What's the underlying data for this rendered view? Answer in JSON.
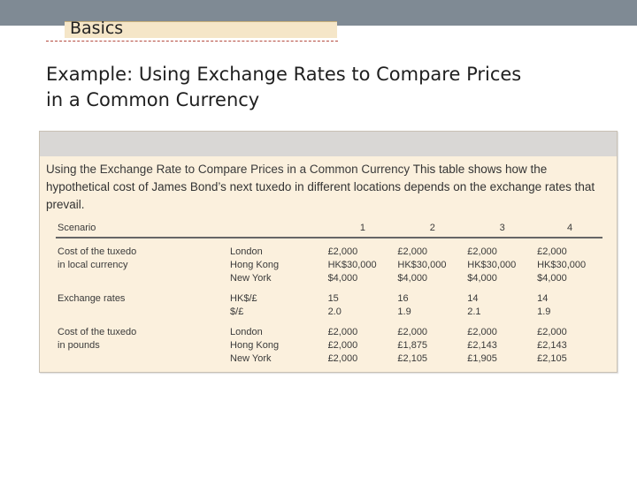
{
  "header": {
    "section_label": "Basics"
  },
  "title": {
    "line1": "Example: Using Exchange Rates to Compare Prices",
    "line2": "in a Common Currency"
  },
  "panel": {
    "caption_title": "Using the Exchange Rate to Compare Prices in a Common Currency",
    "caption_body": " This table shows how the hypothetical cost of James Bond’s next tuxedo in different locations depends on the exchange rates that prevail."
  },
  "table": {
    "headers": [
      "Scenario",
      "",
      "1",
      "2",
      "3",
      "4"
    ],
    "groups": [
      {
        "label_lines": [
          "Cost of the tuxedo",
          "in local currency"
        ],
        "rows": [
          [
            "London",
            "£2,000",
            "£2,000",
            "£2,000",
            "£2,000"
          ],
          [
            "Hong Kong",
            "HK$30,000",
            "HK$30,000",
            "HK$30,000",
            "HK$30,000"
          ],
          [
            "New York",
            "$4,000",
            "$4,000",
            "$4,000",
            "$4,000"
          ]
        ]
      },
      {
        "label_lines": [
          "Exchange rates",
          ""
        ],
        "rows": [
          [
            "HK$/£",
            "15",
            "16",
            "14",
            "14"
          ],
          [
            "$/£",
            "2.0",
            "1.9",
            "2.1",
            "1.9"
          ]
        ]
      },
      {
        "label_lines": [
          "Cost of the tuxedo",
          "in pounds"
        ],
        "rows": [
          [
            "London",
            "£2,000",
            "£2,000",
            "£2,000",
            "£2,000"
          ],
          [
            "Hong Kong",
            "£2,000",
            "£1,875",
            "£2,143",
            "£2,143"
          ],
          [
            "New York",
            "£2,000",
            "£2,105",
            "£1,905",
            "£2,105"
          ]
        ]
      }
    ]
  }
}
